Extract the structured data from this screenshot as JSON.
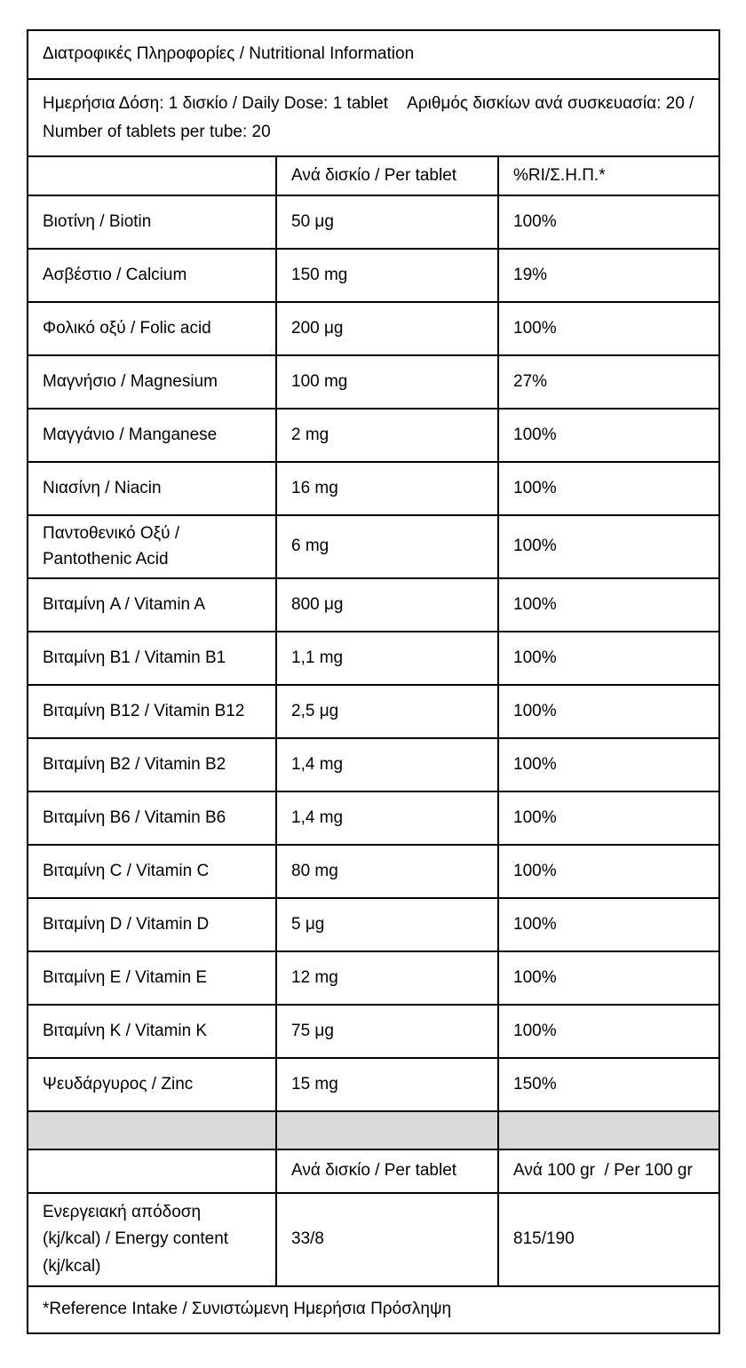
{
  "page": {
    "background": "#ffffff",
    "text_color": "#000000",
    "border_color": "#000000",
    "separator_fill": "#d9d9d9"
  },
  "table": {
    "title": "Διατροφικές Πληροφορίες / Nutritional Information",
    "dose_line": "Ημερήσια Δόση: 1 δισκίο / Daily Dose: 1 tablet    Αριθμός δισκίων ανά συσκευασία: 20 / Number of tablets per tube: 20",
    "header": {
      "col1": "",
      "col2": "Ανά δισκίο / Per tablet",
      "col3": "%RI/Σ.Η.Π.*"
    },
    "rows": [
      {
        "label": "Βιοτίνη / Biotin",
        "per_tablet": "50 μg",
        "ri": "100%"
      },
      {
        "label": "Ασβέστιο / Calcium",
        "per_tablet": "150 mg",
        "ri": "19%"
      },
      {
        "label": "Φολικό οξύ / Folic acid",
        "per_tablet": "200 μg",
        "ri": "100%"
      },
      {
        "label": "Μαγνήσιο / Magnesium",
        "per_tablet": "100 mg",
        "ri": "27%"
      },
      {
        "label": "Μαγγάνιο / Manganese",
        "per_tablet": "2 mg",
        "ri": "100%"
      },
      {
        "label": "Νιασίνη / Niacin",
        "per_tablet": "16 mg",
        "ri": "100%"
      },
      {
        "label": "Παντοθενικό Οξύ / Pantothenic Acid",
        "per_tablet": "6 mg",
        "ri": "100%"
      },
      {
        "label": "Βιταμίνη A / Vitamin A",
        "per_tablet": "800 μg",
        "ri": "100%"
      },
      {
        "label": "Βιταμίνη B1 / Vitamin B1",
        "per_tablet": "1,1 mg",
        "ri": "100%"
      },
      {
        "label": "Βιταμίνη B12 / Vitamin B12",
        "per_tablet": "2,5 μg",
        "ri": "100%"
      },
      {
        "label": "Βιταμίνη B2 / Vitamin B2",
        "per_tablet": "1,4 mg",
        "ri": "100%"
      },
      {
        "label": "Βιταμίνη B6 / Vitamin B6",
        "per_tablet": "1,4 mg",
        "ri": "100%"
      },
      {
        "label": "Βιταμίνη C / Vitamin C",
        "per_tablet": "80 mg",
        "ri": "100%"
      },
      {
        "label": "Βιταμίνη D / Vitamin D",
        "per_tablet": "5 μg",
        "ri": "100%"
      },
      {
        "label": "Βιταμίνη E / Vitamin E",
        "per_tablet": "12 mg",
        "ri": "100%"
      },
      {
        "label": "Βιταμίνη K / Vitamin K",
        "per_tablet": "75 μg",
        "ri": "100%"
      },
      {
        "label": "Ψευδάργυρος / Zinc",
        "per_tablet": "15 mg",
        "ri": "150%"
      }
    ],
    "header2": {
      "col1": "",
      "col2": "Ανά δισκίο / Per tablet",
      "col3": "Ανά 100 gr  / Per 100 gr"
    },
    "energy": {
      "label": "Ενεργειακή απόδοση (kj/kcal) / Energy content (kj/kcal)",
      "per_tablet": "33/8",
      "per_100g": "815/190"
    },
    "footnote": "*Reference Intake / Συνιστώμενη Ημερήσια Πρόσληψη"
  }
}
